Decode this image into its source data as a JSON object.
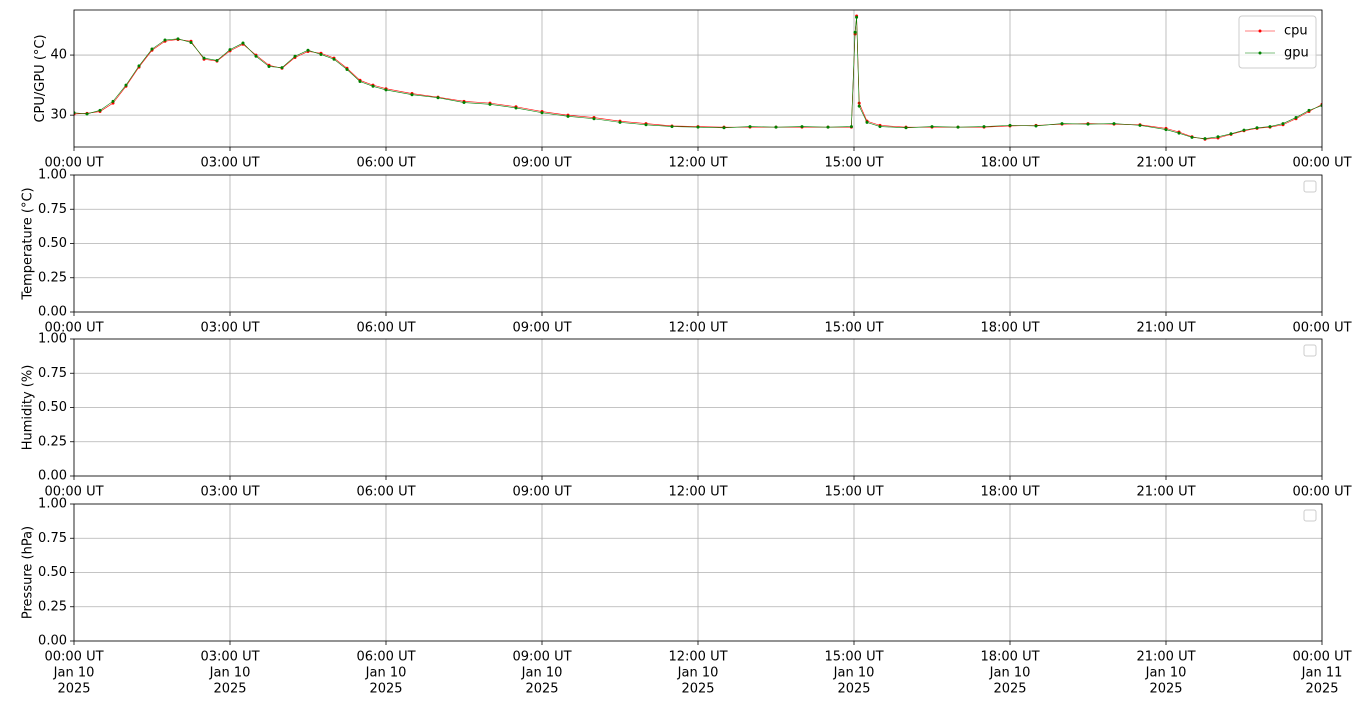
{
  "chart_data": [
    {
      "type": "line",
      "ylabel": "CPU/GPU (°C)",
      "xlim": [
        0,
        24
      ],
      "ylim": [
        24.7,
        47.5
      ],
      "yticks": [
        30,
        40
      ],
      "grid": true,
      "legend": "upper right",
      "xticks": [
        {
          "value": 0,
          "label": "00:00 UT"
        },
        {
          "value": 3,
          "label": "03:00 UT"
        },
        {
          "value": 6,
          "label": "06:00 UT"
        },
        {
          "value": 9,
          "label": "09:00 UT"
        },
        {
          "value": 12,
          "label": "12:00 UT"
        },
        {
          "value": 15,
          "label": "15:00 UT"
        },
        {
          "value": 18,
          "label": "18:00 UT"
        },
        {
          "value": 21,
          "label": "21:00 UT"
        },
        {
          "value": 24,
          "label": "00:00 UT"
        }
      ],
      "x": [
        0,
        0.25,
        0.5,
        0.75,
        1,
        1.25,
        1.5,
        1.75,
        2,
        2.25,
        2.5,
        2.75,
        3,
        3.25,
        3.5,
        3.75,
        4,
        4.25,
        4.5,
        4.75,
        5,
        5.25,
        5.5,
        5.75,
        6,
        6.5,
        7,
        7.5,
        8,
        8.5,
        9,
        9.5,
        10,
        10.5,
        11,
        11.5,
        12,
        12.5,
        13,
        13.5,
        14,
        14.5,
        14.95,
        15.02,
        15.05,
        15.1,
        15.25,
        15.5,
        16,
        16.5,
        17,
        17.5,
        18,
        18.5,
        19,
        19.5,
        20,
        20.5,
        21,
        21.25,
        21.5,
        21.75,
        22,
        22.25,
        22.5,
        22.75,
        23,
        23.25,
        23.5,
        23.75,
        24
      ],
      "series": [
        {
          "name": "cpu",
          "color": "#ff0000",
          "values": [
            30.2,
            30.3,
            30.6,
            32,
            34.8,
            38,
            40.8,
            42.3,
            42.6,
            42.3,
            39.3,
            39,
            40.7,
            41.8,
            40,
            38.3,
            37.8,
            39.6,
            40.6,
            40.3,
            39.5,
            37.8,
            35.8,
            35,
            34.4,
            33.6,
            33,
            32.3,
            32,
            31.4,
            30.6,
            30,
            29.6,
            29,
            28.6,
            28.2,
            28.1,
            28,
            28,
            28,
            28,
            28,
            28,
            43.5,
            46.5,
            32,
            29,
            28.3,
            28,
            28,
            28,
            28,
            28.2,
            28.3,
            28.5,
            28.6,
            28.5,
            28.4,
            27.8,
            27.2,
            26.4,
            26,
            26.2,
            26.8,
            27.4,
            27.8,
            28,
            28.4,
            29.4,
            30.6,
            31.8
          ]
        },
        {
          "name": "gpu",
          "color": "#008000",
          "values": [
            30.4,
            30.2,
            30.8,
            32.3,
            35,
            38.2,
            41,
            42.5,
            42.7,
            42.1,
            39.5,
            39.1,
            40.9,
            42,
            39.8,
            38.1,
            37.9,
            39.8,
            40.8,
            40.1,
            39.3,
            37.6,
            35.6,
            34.8,
            34.2,
            33.4,
            32.9,
            32.1,
            31.8,
            31.2,
            30.4,
            29.8,
            29.4,
            28.8,
            28.4,
            28.1,
            28,
            27.9,
            28.1,
            28,
            28.1,
            28,
            28.1,
            43.8,
            46.3,
            31.5,
            28.8,
            28.1,
            27.9,
            28.1,
            28,
            28.1,
            28.3,
            28.2,
            28.6,
            28.5,
            28.6,
            28.3,
            27.6,
            27,
            26.3,
            26.1,
            26.4,
            26.9,
            27.5,
            27.9,
            28.1,
            28.6,
            29.6,
            30.8,
            31.6
          ]
        }
      ]
    },
    {
      "type": "line",
      "ylabel": "Temperature (°C)",
      "xlim": [
        0,
        24
      ],
      "ylim": [
        0,
        1
      ],
      "grid": true,
      "legend": "upper right",
      "yticks": [
        {
          "value": 0,
          "label": "0.00"
        },
        {
          "value": 0.25,
          "label": "0.25"
        },
        {
          "value": 0.5,
          "label": "0.50"
        },
        {
          "value": 0.75,
          "label": "0.75"
        },
        {
          "value": 1,
          "label": "1.00"
        }
      ],
      "xticks": [
        {
          "value": 0,
          "label": "00:00 UT"
        },
        {
          "value": 3,
          "label": "03:00 UT"
        },
        {
          "value": 6,
          "label": "06:00 UT"
        },
        {
          "value": 9,
          "label": "09:00 UT"
        },
        {
          "value": 12,
          "label": "12:00 UT"
        },
        {
          "value": 15,
          "label": "15:00 UT"
        },
        {
          "value": 18,
          "label": "18:00 UT"
        },
        {
          "value": 21,
          "label": "21:00 UT"
        },
        {
          "value": 24,
          "label": "00:00 UT"
        }
      ],
      "series": []
    },
    {
      "type": "line",
      "ylabel": "Humidity (%)",
      "xlim": [
        0,
        24
      ],
      "ylim": [
        0,
        1
      ],
      "grid": true,
      "legend": "upper right",
      "yticks": [
        {
          "value": 0,
          "label": "0.00"
        },
        {
          "value": 0.25,
          "label": "0.25"
        },
        {
          "value": 0.5,
          "label": "0.50"
        },
        {
          "value": 0.75,
          "label": "0.75"
        },
        {
          "value": 1,
          "label": "1.00"
        }
      ],
      "xticks": [
        {
          "value": 0,
          "label": "00:00 UT"
        },
        {
          "value": 3,
          "label": "03:00 UT"
        },
        {
          "value": 6,
          "label": "06:00 UT"
        },
        {
          "value": 9,
          "label": "09:00 UT"
        },
        {
          "value": 12,
          "label": "12:00 UT"
        },
        {
          "value": 15,
          "label": "15:00 UT"
        },
        {
          "value": 18,
          "label": "18:00 UT"
        },
        {
          "value": 21,
          "label": "21:00 UT"
        },
        {
          "value": 24,
          "label": "00:00 UT"
        }
      ],
      "series": []
    },
    {
      "type": "line",
      "ylabel": "Pressure (hPa)",
      "xlim": [
        0,
        24
      ],
      "ylim": [
        0,
        1
      ],
      "grid": true,
      "legend": "upper right",
      "yticks": [
        {
          "value": 0,
          "label": "0.00"
        },
        {
          "value": 0.25,
          "label": "0.25"
        },
        {
          "value": 0.5,
          "label": "0.50"
        },
        {
          "value": 0.75,
          "label": "0.75"
        },
        {
          "value": 1,
          "label": "1.00"
        }
      ],
      "xticks": [
        {
          "value": 0,
          "label": "00:00 UT",
          "date": "Jan 10",
          "year": "2025"
        },
        {
          "value": 3,
          "label": "03:00 UT",
          "date": "Jan 10",
          "year": "2025"
        },
        {
          "value": 6,
          "label": "06:00 UT",
          "date": "Jan 10",
          "year": "2025"
        },
        {
          "value": 9,
          "label": "09:00 UT",
          "date": "Jan 10",
          "year": "2025"
        },
        {
          "value": 12,
          "label": "12:00 UT",
          "date": "Jan 10",
          "year": "2025"
        },
        {
          "value": 15,
          "label": "15:00 UT",
          "date": "Jan 10",
          "year": "2025"
        },
        {
          "value": 18,
          "label": "18:00 UT",
          "date": "Jan 10",
          "year": "2025"
        },
        {
          "value": 21,
          "label": "21:00 UT",
          "date": "Jan 10",
          "year": "2025"
        },
        {
          "value": 24,
          "label": "00:00 UT",
          "date": "Jan 11",
          "year": "2025"
        }
      ],
      "series": []
    }
  ]
}
